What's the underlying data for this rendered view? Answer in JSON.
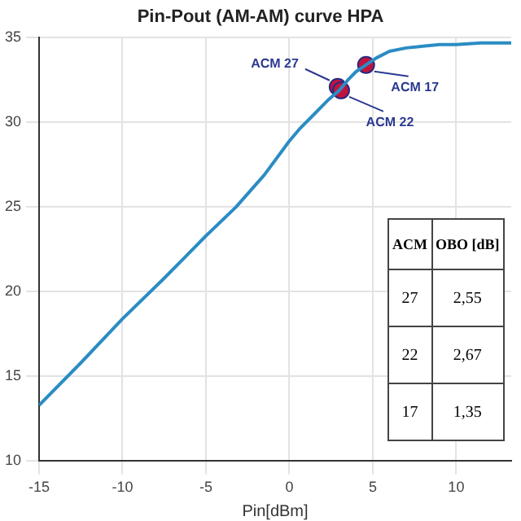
{
  "chart_data": {
    "type": "line",
    "title": "Pin-Pout (AM-AM) curve HPA",
    "xlabel": "Pin[dBm]",
    "xlim": [
      -15,
      13.3
    ],
    "xticks": [
      -15,
      -10,
      -5,
      0,
      5,
      10
    ],
    "ylim": [
      10,
      35
    ],
    "yticks": [
      10,
      15,
      20,
      25,
      30,
      35
    ],
    "grid": true,
    "legend": false,
    "line_style": "solid",
    "series": [
      {
        "color": "#2b8cc4",
        "marker": "none",
        "x": [
          -15,
          -12.5,
          -10,
          -7.5,
          -6.3,
          -5,
          -3.2,
          -1.5,
          0,
          0.6,
          1.5,
          2.3,
          3.0,
          3.5,
          4.0,
          4.6,
          5.2,
          6.0,
          7.0,
          8.0,
          9.0,
          10.0,
          11.5,
          13.3
        ],
        "values": [
          13.3,
          15.8,
          18.4,
          20.8,
          22.0,
          23.3,
          25.0,
          26.9,
          28.9,
          29.6,
          30.5,
          31.3,
          31.9,
          32.5,
          33.0,
          33.4,
          33.8,
          34.2,
          34.4,
          34.5,
          34.6,
          34.6,
          34.7,
          34.7
        ]
      },
      {
        "type": "scatter",
        "color": "#c0143c",
        "marker": "circle",
        "x": [
          2.9,
          3.1,
          4.6
        ],
        "values": [
          32.1,
          31.9,
          33.4
        ]
      }
    ],
    "annotations": [
      {
        "text": "ACM 27",
        "x": 2.9,
        "y": 32.1
      },
      {
        "text": "ACM 22",
        "x": 3.1,
        "y": 31.9
      },
      {
        "text": "ACM 17",
        "x": 4.6,
        "y": 33.4
      },
      "ACM",
      "OBO [dB]",
      "27",
      "2,55",
      "22",
      "2,67",
      "17",
      "1,35"
    ]
  }
}
